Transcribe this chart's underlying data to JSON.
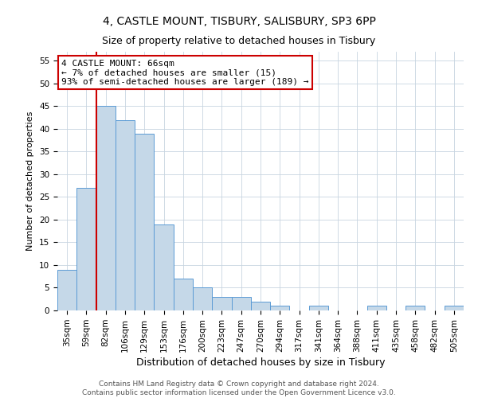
{
  "title1": "4, CASTLE MOUNT, TISBURY, SALISBURY, SP3 6PP",
  "title2": "Size of property relative to detached houses in Tisbury",
  "xlabel": "Distribution of detached houses by size in Tisbury",
  "ylabel": "Number of detached properties",
  "categories": [
    "35sqm",
    "59sqm",
    "82sqm",
    "106sqm",
    "129sqm",
    "153sqm",
    "176sqm",
    "200sqm",
    "223sqm",
    "247sqm",
    "270sqm",
    "294sqm",
    "317sqm",
    "341sqm",
    "364sqm",
    "388sqm",
    "411sqm",
    "435sqm",
    "458sqm",
    "482sqm",
    "505sqm"
  ],
  "values": [
    9,
    27,
    45,
    42,
    39,
    19,
    7,
    5,
    3,
    3,
    2,
    1,
    0,
    1,
    0,
    0,
    1,
    0,
    1,
    0,
    1
  ],
  "bar_color": "#c5d8e8",
  "bar_edge_color": "#5b9bd5",
  "vline_x": 1.5,
  "vline_color": "#cc0000",
  "ylim": [
    0,
    57
  ],
  "yticks": [
    0,
    5,
    10,
    15,
    20,
    25,
    30,
    35,
    40,
    45,
    50,
    55
  ],
  "annotation_text": "4 CASTLE MOUNT: 66sqm\n← 7% of detached houses are smaller (15)\n93% of semi-detached houses are larger (189) →",
  "annotation_box_color": "#ffffff",
  "annotation_box_edge": "#cc0000",
  "footer1": "Contains HM Land Registry data © Crown copyright and database right 2024.",
  "footer2": "Contains public sector information licensed under the Open Government Licence v3.0.",
  "title1_fontsize": 10,
  "title2_fontsize": 9,
  "xlabel_fontsize": 9,
  "ylabel_fontsize": 8,
  "tick_fontsize": 7.5,
  "annotation_fontsize": 8,
  "footer_fontsize": 6.5,
  "background_color": "#ffffff",
  "grid_color": "#c8d4e0"
}
